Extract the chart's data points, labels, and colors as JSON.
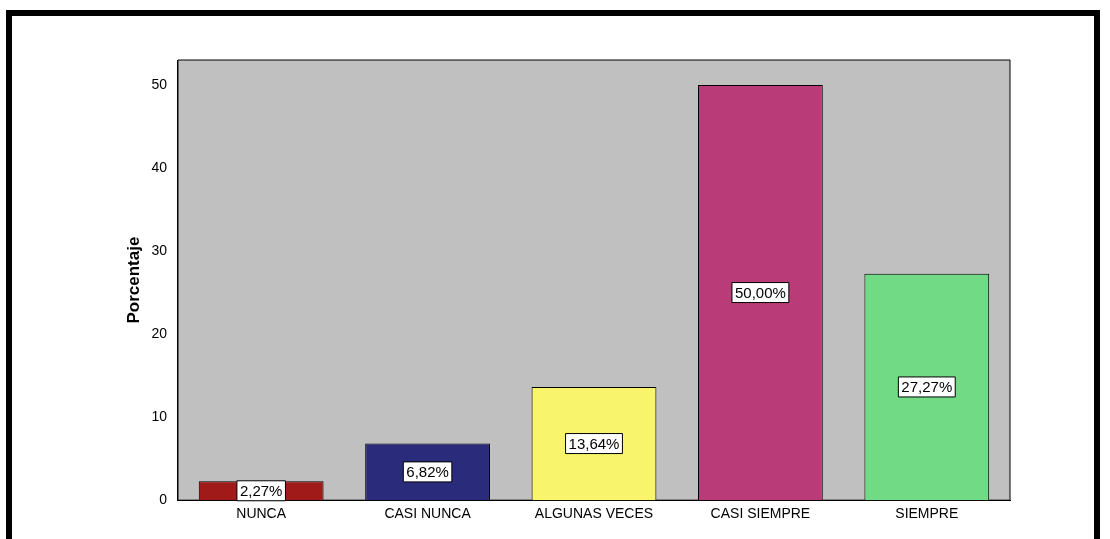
{
  "chart_data": {
    "type": "bar",
    "ylabel": "Porcentaje",
    "categories": [
      "NUNCA",
      "CASI NUNCA",
      "ALGUNAS VECES",
      "CASI SIEMPRE",
      "SIEMPRE"
    ],
    "values": [
      2.27,
      6.82,
      13.64,
      50.0,
      27.27
    ],
    "colors": [
      "#a01a1a",
      "#2b2b7c",
      "#f8f46c",
      "#b93c78",
      "#70da84"
    ],
    "value_labels": [
      "2,27%",
      "6,82%",
      "13,64%",
      "50,00%",
      "27,27%"
    ],
    "ylim": [
      0,
      53
    ],
    "yticks": [
      0,
      10,
      20,
      30,
      40,
      50
    ],
    "grid": false,
    "legend": false
  }
}
